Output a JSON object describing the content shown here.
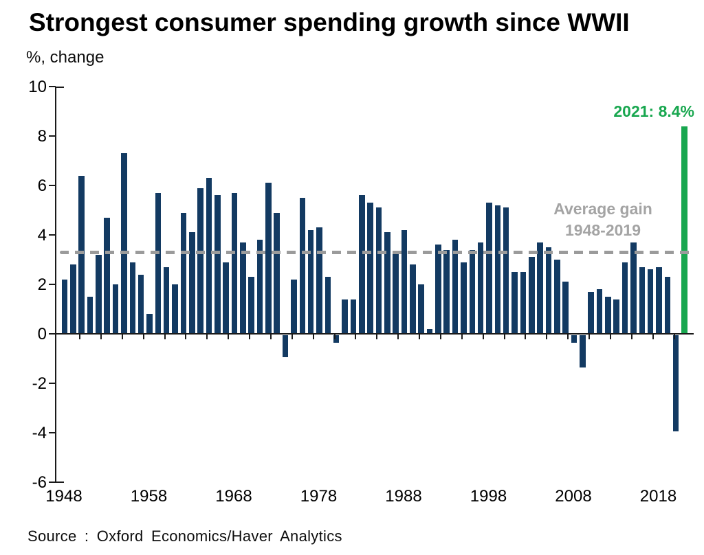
{
  "title": "Strongest consumer spending growth since WWII",
  "subtitle": "%, change",
  "source": "Source : Oxford Economics/Haver Analytics",
  "annotations": {
    "average_line1": "Average gain",
    "average_line2": "1948-2019",
    "highlight_label": "2021: 8.4%"
  },
  "colors": {
    "bar": "#133a62",
    "highlight": "#18a74f",
    "average_line": "#9b9b9b",
    "annotation_text": "#a4a4a4",
    "axis": "#1a1a1a"
  },
  "chart_data": {
    "type": "bar",
    "title": "Strongest consumer spending growth since WWII",
    "xlabel": "",
    "ylabel": "%, change",
    "ylim": [
      -6,
      10
    ],
    "yticks": [
      10,
      8,
      6,
      4,
      2,
      0,
      -2,
      -4,
      -6
    ],
    "x_tick_labels": [
      "1948",
      "1958",
      "1968",
      "1978",
      "1988",
      "1998",
      "2008",
      "2018"
    ],
    "grid": false,
    "legend": null,
    "average_line_value": 3.3,
    "highlight_year": 2021,
    "highlight_value": 8.4,
    "years": [
      1948,
      1949,
      1950,
      1951,
      1952,
      1953,
      1954,
      1955,
      1956,
      1957,
      1958,
      1959,
      1960,
      1961,
      1962,
      1963,
      1964,
      1965,
      1966,
      1967,
      1968,
      1969,
      1970,
      1971,
      1972,
      1973,
      1974,
      1975,
      1976,
      1977,
      1978,
      1979,
      1980,
      1981,
      1982,
      1983,
      1984,
      1985,
      1986,
      1987,
      1988,
      1989,
      1990,
      1991,
      1992,
      1993,
      1994,
      1995,
      1996,
      1997,
      1998,
      1999,
      2000,
      2001,
      2002,
      2003,
      2004,
      2005,
      2006,
      2007,
      2008,
      2009,
      2010,
      2011,
      2012,
      2013,
      2014,
      2015,
      2016,
      2017,
      2018,
      2019,
      2020,
      2021
    ],
    "values": [
      2.2,
      2.8,
      6.4,
      1.5,
      3.2,
      4.7,
      2.0,
      7.3,
      2.9,
      2.4,
      0.8,
      5.7,
      2.7,
      2.0,
      4.9,
      4.1,
      5.9,
      6.3,
      5.6,
      2.9,
      5.7,
      3.7,
      2.3,
      3.8,
      6.1,
      4.9,
      -0.9,
      2.2,
      5.5,
      4.2,
      4.3,
      2.3,
      -0.3,
      1.4,
      1.4,
      5.6,
      5.3,
      5.1,
      4.1,
      3.3,
      4.2,
      2.8,
      2.0,
      0.2,
      3.6,
      3.4,
      3.8,
      2.9,
      3.4,
      3.7,
      5.3,
      5.2,
      5.1,
      2.5,
      2.5,
      3.1,
      3.7,
      3.5,
      3.0,
      2.1,
      -0.3,
      -1.3,
      1.7,
      1.8,
      1.5,
      1.4,
      2.9,
      3.7,
      2.7,
      2.6,
      2.7,
      2.3,
      -3.9,
      8.4
    ]
  }
}
